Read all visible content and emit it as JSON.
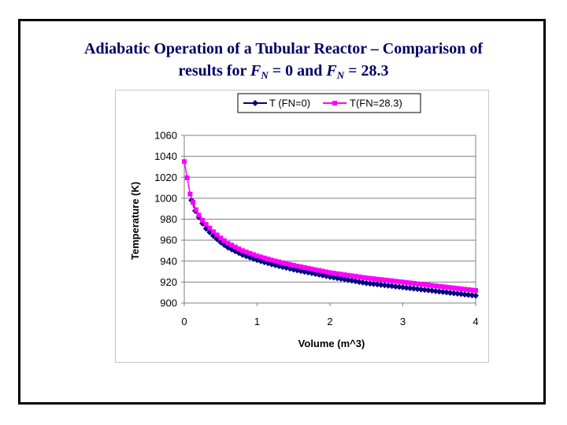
{
  "slide": {
    "title_line1": "Adiabatic Operation of a Tubular Reactor – Comparison of",
    "title_line2_prefix": "results for ",
    "fn_symbol": "F",
    "fn_subscript": "N",
    "eq_zero": " = 0 and ",
    "eq_value": " = 28.3"
  },
  "chart_data": {
    "type": "line",
    "title": "",
    "xlabel": "Volume (m^3)",
    "ylabel": "Temperature (K)",
    "xlim": [
      0,
      4
    ],
    "ylim": [
      900,
      1060
    ],
    "xticks": [
      0,
      1,
      2,
      3,
      4
    ],
    "yticks": [
      900,
      920,
      940,
      960,
      980,
      1000,
      1020,
      1040,
      1060
    ],
    "grid": true,
    "legend_position": "top",
    "series": [
      {
        "name": "T (FN=0)",
        "color": "#000080",
        "marker": "diamond",
        "x": [
          0.1,
          0.15,
          0.2,
          0.25,
          0.3,
          0.4,
          0.5,
          0.6,
          0.8,
          1.0,
          1.2,
          1.5,
          2.0,
          2.5,
          3.0,
          3.5,
          4.0
        ],
        "y": [
          998,
          988,
          982,
          976,
          971,
          964,
          958,
          953,
          946,
          941,
          937,
          932,
          925,
          919,
          915,
          911,
          907
        ]
      },
      {
        "name": "T(FN=28.3)",
        "color": "#ff00ff",
        "marker": "square",
        "x": [
          0,
          0.08,
          0.12,
          0.16,
          0.2,
          0.25,
          0.3,
          0.4,
          0.5,
          0.6,
          0.8,
          1.0,
          1.2,
          1.5,
          2.0,
          2.5,
          3.0,
          3.5,
          4.0
        ],
        "y": [
          1035,
          1004,
          996,
          989,
          984,
          979,
          975,
          968,
          962,
          957,
          950,
          945,
          941,
          936,
          929,
          924,
          920,
          916,
          912
        ]
      }
    ]
  }
}
